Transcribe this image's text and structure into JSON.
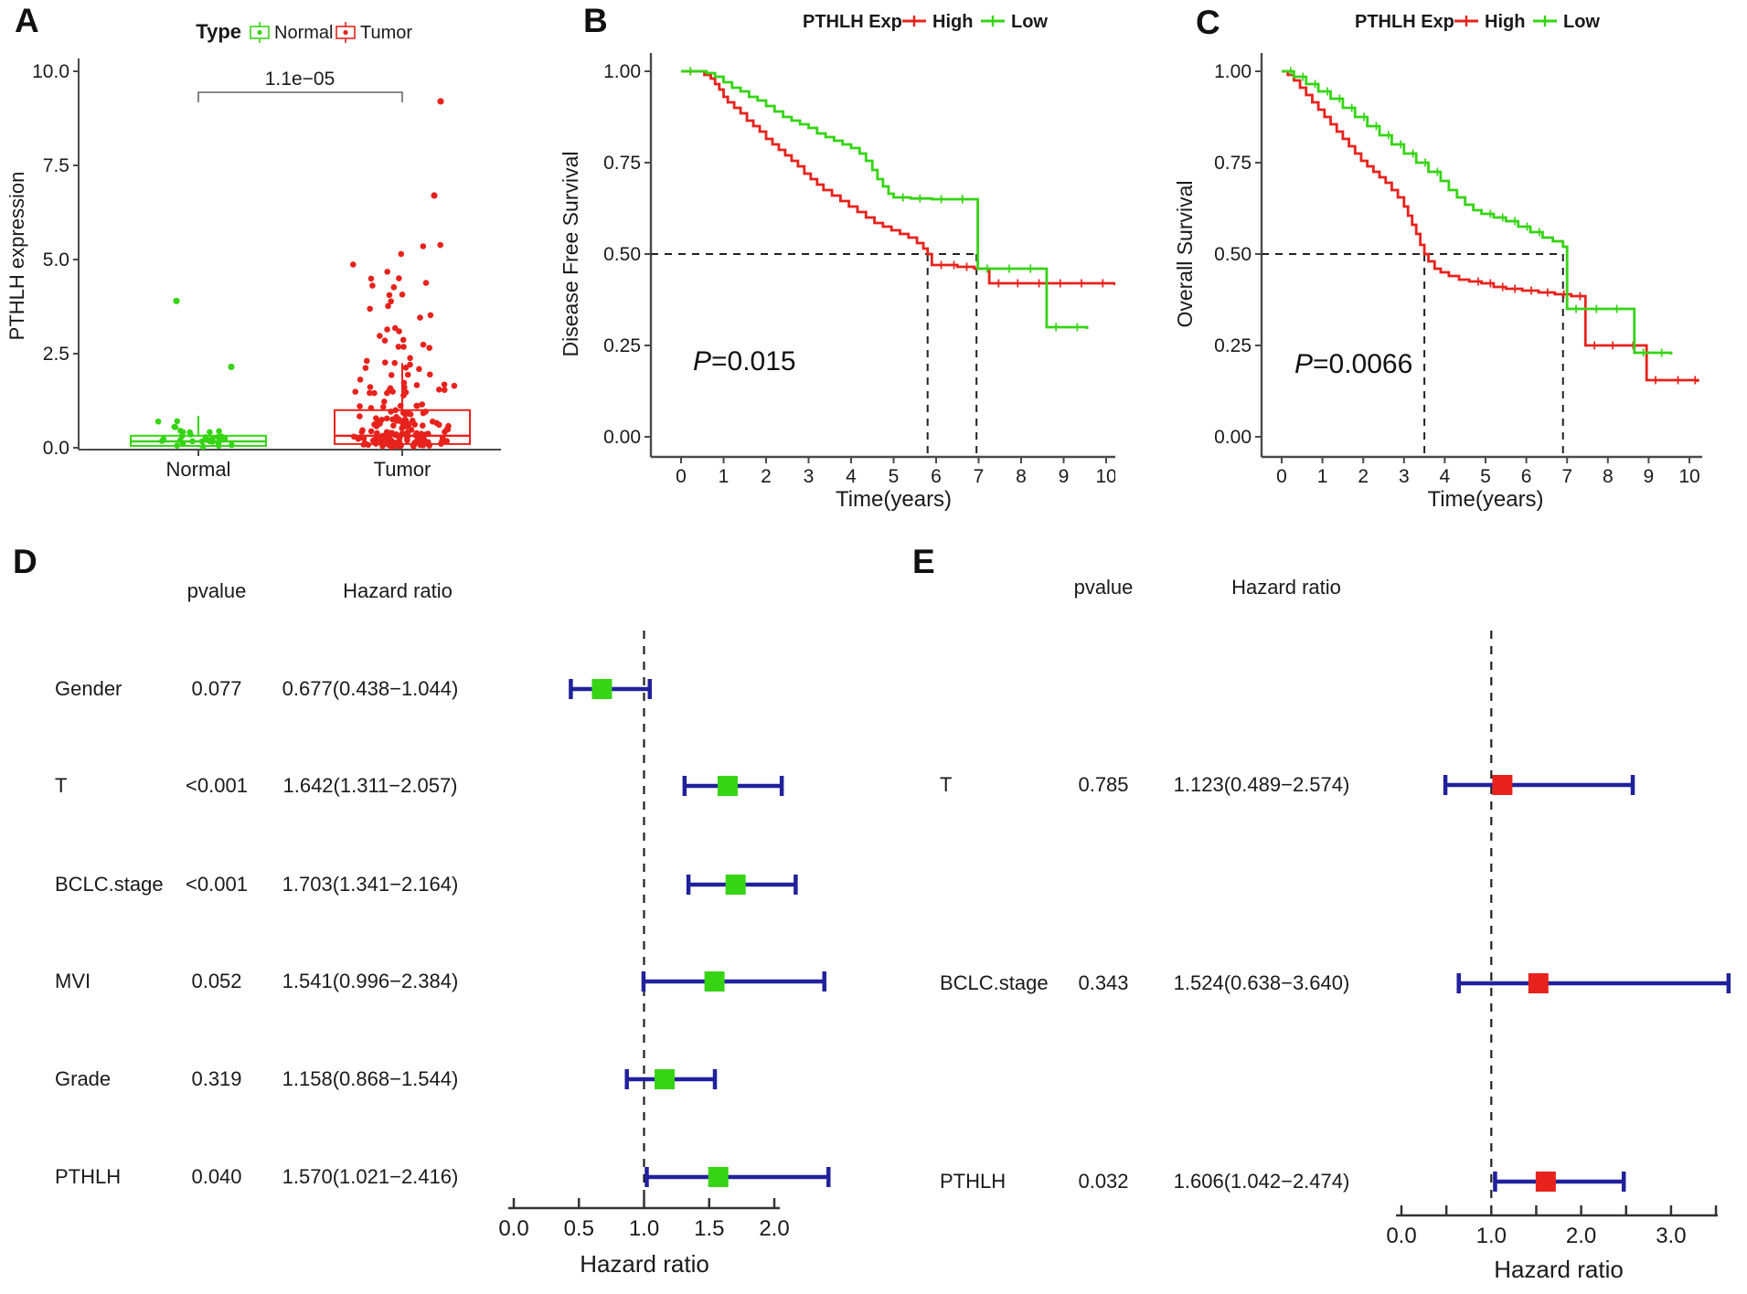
{
  "figure": {
    "panel_labels": [
      "A",
      "B",
      "C",
      "D",
      "E"
    ]
  },
  "colors": {
    "red": "#e7221c",
    "green": "#36d415",
    "navy": "#21219c",
    "axis": "#4a4a4a",
    "dash": "#222222",
    "text": "#1a1a1a",
    "bracket": "#666666"
  },
  "chart_data": [
    {
      "panel": "A",
      "type": "scatter",
      "subtype": "boxplot-jitter",
      "legend_title": "Type",
      "ylabel": "PTHLH expression",
      "yticks": [
        0.0,
        2.5,
        5.0,
        7.5,
        10.0
      ],
      "ylim": [
        0,
        10
      ],
      "significance": "1.1e−05",
      "categories": [
        "Normal",
        "Tumor"
      ],
      "groups": [
        {
          "name": "Normal",
          "color_key": "green",
          "box": {
            "q1": 0.05,
            "median": 0.17,
            "q3": 0.32,
            "whisker_hi": 0.85,
            "whisker_lo": 0.01
          },
          "point_bands": [
            {
              "count": 18,
              "lo": 0.02,
              "hi": 0.25
            },
            {
              "count": 10,
              "lo": 0.25,
              "hi": 0.5
            },
            {
              "count": 4,
              "lo": 0.5,
              "hi": 0.8
            }
          ],
          "outliers": [
            {
              "v": 3.9,
              "dx": -24
            },
            {
              "v": 2.15,
              "dx": 36
            }
          ]
        },
        {
          "name": "Tumor",
          "color_key": "red",
          "box": {
            "q1": 0.1,
            "median": 0.32,
            "q3": 1.0,
            "whisker_hi": 2.25,
            "whisker_lo": 0.01
          },
          "point_bands": [
            {
              "count": 85,
              "lo": 0.02,
              "hi": 0.4
            },
            {
              "count": 45,
              "lo": 0.4,
              "hi": 1.0
            },
            {
              "count": 30,
              "lo": 1.0,
              "hi": 2.0
            },
            {
              "count": 18,
              "lo": 2.0,
              "hi": 3.2
            },
            {
              "count": 12,
              "lo": 3.2,
              "hi": 4.6
            },
            {
              "count": 5,
              "lo": 4.6,
              "hi": 5.5
            }
          ],
          "outliers": [
            {
              "v": 9.2,
              "dx": 42
            },
            {
              "v": 6.7,
              "dx": 35
            }
          ]
        }
      ]
    },
    {
      "panel": "B",
      "type": "line",
      "subtype": "kaplan-meier",
      "legend_title": "PTHLH Exp",
      "xlabel": "Time(years)",
      "ylabel": "Disease Free Survival",
      "xticks": [
        0,
        1,
        2,
        3,
        4,
        5,
        6,
        7,
        8,
        9,
        10
      ],
      "yticks": [
        0.0,
        0.25,
        0.5,
        0.75,
        1.0
      ],
      "pvalue_label": "P=0.015",
      "median_line_y": 0.5,
      "median_survival_years": [
        5.8,
        6.95
      ],
      "series": [
        {
          "name": "High",
          "color_key": "red",
          "steps": [
            [
              0,
              1
            ],
            [
              0.55,
              0.99
            ],
            [
              0.7,
              0.98
            ],
            [
              0.8,
              0.965
            ],
            [
              0.9,
              0.95
            ],
            [
              1.0,
              0.93
            ],
            [
              1.1,
              0.915
            ],
            [
              1.25,
              0.9
            ],
            [
              1.4,
              0.885
            ],
            [
              1.55,
              0.865
            ],
            [
              1.7,
              0.85
            ],
            [
              1.85,
              0.835
            ],
            [
              2.0,
              0.815
            ],
            [
              2.15,
              0.8
            ],
            [
              2.3,
              0.785
            ],
            [
              2.45,
              0.77
            ],
            [
              2.6,
              0.755
            ],
            [
              2.75,
              0.74
            ],
            [
              2.9,
              0.72
            ],
            [
              3.05,
              0.705
            ],
            [
              3.2,
              0.69
            ],
            [
              3.35,
              0.675
            ],
            [
              3.55,
              0.66
            ],
            [
              3.75,
              0.645
            ],
            [
              3.95,
              0.63
            ],
            [
              4.15,
              0.615
            ],
            [
              4.35,
              0.6
            ],
            [
              4.55,
              0.585
            ],
            [
              4.75,
              0.575
            ],
            [
              4.95,
              0.565
            ],
            [
              5.15,
              0.555
            ],
            [
              5.35,
              0.545
            ],
            [
              5.55,
              0.53
            ],
            [
              5.7,
              0.515
            ],
            [
              5.8,
              0.5
            ],
            [
              5.9,
              0.47
            ],
            [
              6.2,
              0.47
            ],
            [
              6.5,
              0.465
            ],
            [
              6.9,
              0.46
            ],
            [
              7.15,
              0.46
            ],
            [
              7.25,
              0.42
            ],
            [
              7.7,
              0.42
            ],
            [
              8.2,
              0.42
            ],
            [
              8.7,
              0.42
            ],
            [
              9.2,
              0.42
            ],
            [
              9.7,
              0.42
            ],
            [
              10.2,
              0.415
            ]
          ]
        },
        {
          "name": "Low",
          "color_key": "green",
          "steps": [
            [
              0,
              1
            ],
            [
              0.6,
              0.995
            ],
            [
              0.8,
              0.985
            ],
            [
              1.0,
              0.97
            ],
            [
              1.2,
              0.955
            ],
            [
              1.4,
              0.945
            ],
            [
              1.6,
              0.93
            ],
            [
              1.8,
              0.92
            ],
            [
              2.0,
              0.905
            ],
            [
              2.2,
              0.89
            ],
            [
              2.4,
              0.875
            ],
            [
              2.6,
              0.865
            ],
            [
              2.8,
              0.855
            ],
            [
              3.0,
              0.845
            ],
            [
              3.2,
              0.83
            ],
            [
              3.4,
              0.82
            ],
            [
              3.6,
              0.81
            ],
            [
              3.8,
              0.8
            ],
            [
              4.0,
              0.79
            ],
            [
              4.2,
              0.775
            ],
            [
              4.35,
              0.755
            ],
            [
              4.5,
              0.73
            ],
            [
              4.62,
              0.705
            ],
            [
              4.75,
              0.685
            ],
            [
              4.88,
              0.665
            ],
            [
              5.0,
              0.655
            ],
            [
              5.4,
              0.652
            ],
            [
              5.9,
              0.65
            ],
            [
              6.4,
              0.65
            ],
            [
              6.9,
              0.65
            ],
            [
              6.98,
              0.46
            ],
            [
              7.5,
              0.46
            ],
            [
              8.0,
              0.46
            ],
            [
              8.45,
              0.46
            ],
            [
              8.6,
              0.3
            ],
            [
              9.1,
              0.3
            ],
            [
              9.55,
              0.295
            ]
          ]
        }
      ]
    },
    {
      "panel": "C",
      "type": "line",
      "subtype": "kaplan-meier",
      "legend_title": "PTHLH Exp",
      "xlabel": "Time(years)",
      "ylabel": "Overall Survival",
      "xticks": [
        0,
        1,
        2,
        3,
        4,
        5,
        6,
        7,
        8,
        9,
        10
      ],
      "yticks": [
        0.0,
        0.25,
        0.5,
        0.75,
        1.0
      ],
      "pvalue_label": "P=0.0066",
      "median_line_y": 0.5,
      "median_survival_years": [
        3.5,
        6.9
      ],
      "series": [
        {
          "name": "High",
          "color_key": "red",
          "steps": [
            [
              0,
              1
            ],
            [
              0.15,
              0.99
            ],
            [
              0.3,
              0.975
            ],
            [
              0.45,
              0.955
            ],
            [
              0.6,
              0.935
            ],
            [
              0.75,
              0.915
            ],
            [
              0.9,
              0.895
            ],
            [
              1.05,
              0.875
            ],
            [
              1.2,
              0.855
            ],
            [
              1.35,
              0.835
            ],
            [
              1.5,
              0.815
            ],
            [
              1.65,
              0.795
            ],
            [
              1.8,
              0.775
            ],
            [
              1.95,
              0.755
            ],
            [
              2.1,
              0.74
            ],
            [
              2.25,
              0.725
            ],
            [
              2.4,
              0.71
            ],
            [
              2.55,
              0.695
            ],
            [
              2.7,
              0.675
            ],
            [
              2.85,
              0.655
            ],
            [
              3.0,
              0.63
            ],
            [
              3.1,
              0.605
            ],
            [
              3.2,
              0.58
            ],
            [
              3.3,
              0.555
            ],
            [
              3.4,
              0.525
            ],
            [
              3.5,
              0.5
            ],
            [
              3.6,
              0.48
            ],
            [
              3.75,
              0.46
            ],
            [
              3.9,
              0.45
            ],
            [
              4.1,
              0.44
            ],
            [
              4.35,
              0.43
            ],
            [
              4.6,
              0.425
            ],
            [
              4.9,
              0.42
            ],
            [
              5.2,
              0.41
            ],
            [
              5.5,
              0.405
            ],
            [
              5.9,
              0.4
            ],
            [
              6.3,
              0.395
            ],
            [
              6.7,
              0.39
            ],
            [
              7.1,
              0.385
            ],
            [
              7.45,
              0.25
            ],
            [
              7.9,
              0.25
            ],
            [
              8.4,
              0.25
            ],
            [
              8.95,
              0.155
            ],
            [
              9.5,
              0.155
            ],
            [
              10.2,
              0.15
            ]
          ]
        },
        {
          "name": "Low",
          "color_key": "green",
          "steps": [
            [
              0,
              1
            ],
            [
              0.3,
              0.985
            ],
            [
              0.6,
              0.965
            ],
            [
              0.9,
              0.945
            ],
            [
              1.2,
              0.925
            ],
            [
              1.5,
              0.9
            ],
            [
              1.8,
              0.875
            ],
            [
              2.1,
              0.85
            ],
            [
              2.4,
              0.825
            ],
            [
              2.7,
              0.8
            ],
            [
              3.0,
              0.775
            ],
            [
              3.3,
              0.75
            ],
            [
              3.6,
              0.725
            ],
            [
              3.9,
              0.7
            ],
            [
              4.1,
              0.675
            ],
            [
              4.3,
              0.655
            ],
            [
              4.5,
              0.635
            ],
            [
              4.7,
              0.62
            ],
            [
              4.9,
              0.61
            ],
            [
              5.2,
              0.6
            ],
            [
              5.5,
              0.59
            ],
            [
              5.8,
              0.575
            ],
            [
              6.1,
              0.56
            ],
            [
              6.4,
              0.545
            ],
            [
              6.65,
              0.535
            ],
            [
              6.9,
              0.52
            ],
            [
              7.0,
              0.35
            ],
            [
              7.5,
              0.35
            ],
            [
              8.0,
              0.35
            ],
            [
              8.5,
              0.35
            ],
            [
              8.65,
              0.23
            ],
            [
              9.1,
              0.23
            ],
            [
              9.55,
              0.225
            ]
          ]
        }
      ]
    },
    {
      "panel": "D",
      "type": "forest",
      "col_headers": [
        "pvalue",
        "Hazard ratio"
      ],
      "xlabel": "Hazard ratio",
      "ref_line": 1.0,
      "xticks": [
        0.0,
        0.5,
        1.0,
        1.5,
        2.0
      ],
      "minor_ticks": [],
      "marker_color_key": "green",
      "rows": [
        {
          "label": "Gender",
          "pvalue": "0.077",
          "hr_text": "0.677(0.438−1.044)",
          "hr": 0.677,
          "lo": 0.438,
          "hi": 1.044
        },
        {
          "label": "T",
          "pvalue": "<0.001",
          "hr_text": "1.642(1.311−2.057)",
          "hr": 1.642,
          "lo": 1.311,
          "hi": 2.057
        },
        {
          "label": "BCLC.stage",
          "pvalue": "<0.001",
          "hr_text": "1.703(1.341−2.164)",
          "hr": 1.703,
          "lo": 1.341,
          "hi": 2.164
        },
        {
          "label": "MVI",
          "pvalue": "0.052",
          "hr_text": "1.541(0.996−2.384)",
          "hr": 1.541,
          "lo": 0.996,
          "hi": 2.384
        },
        {
          "label": "Grade",
          "pvalue": "0.319",
          "hr_text": "1.158(0.868−1.544)",
          "hr": 1.158,
          "lo": 0.868,
          "hi": 1.544
        },
        {
          "label": "PTHLH",
          "pvalue": "0.040",
          "hr_text": "1.570(1.021−2.416)",
          "hr": 1.57,
          "lo": 1.021,
          "hi": 2.416
        }
      ]
    },
    {
      "panel": "E",
      "type": "forest",
      "col_headers": [
        "pvalue",
        "Hazard ratio"
      ],
      "xlabel": "Hazard ratio",
      "ref_line": 1.0,
      "xticks": [
        0.0,
        1.0,
        2.0,
        3.0
      ],
      "minor_ticks": [
        0.5,
        1.5,
        2.5,
        3.5
      ],
      "marker_color_key": "red",
      "rows": [
        {
          "label": "T",
          "pvalue": "0.785",
          "hr_text": "1.123(0.489−2.574)",
          "hr": 1.123,
          "lo": 0.489,
          "hi": 2.574
        },
        {
          "label": "BCLC.stage",
          "pvalue": "0.343",
          "hr_text": "1.524(0.638−3.640)",
          "hr": 1.524,
          "lo": 0.638,
          "hi": 3.64
        },
        {
          "label": "PTHLH",
          "pvalue": "0.032",
          "hr_text": "1.606(1.042−2.474)",
          "hr": 1.606,
          "lo": 1.042,
          "hi": 2.474
        }
      ]
    }
  ]
}
